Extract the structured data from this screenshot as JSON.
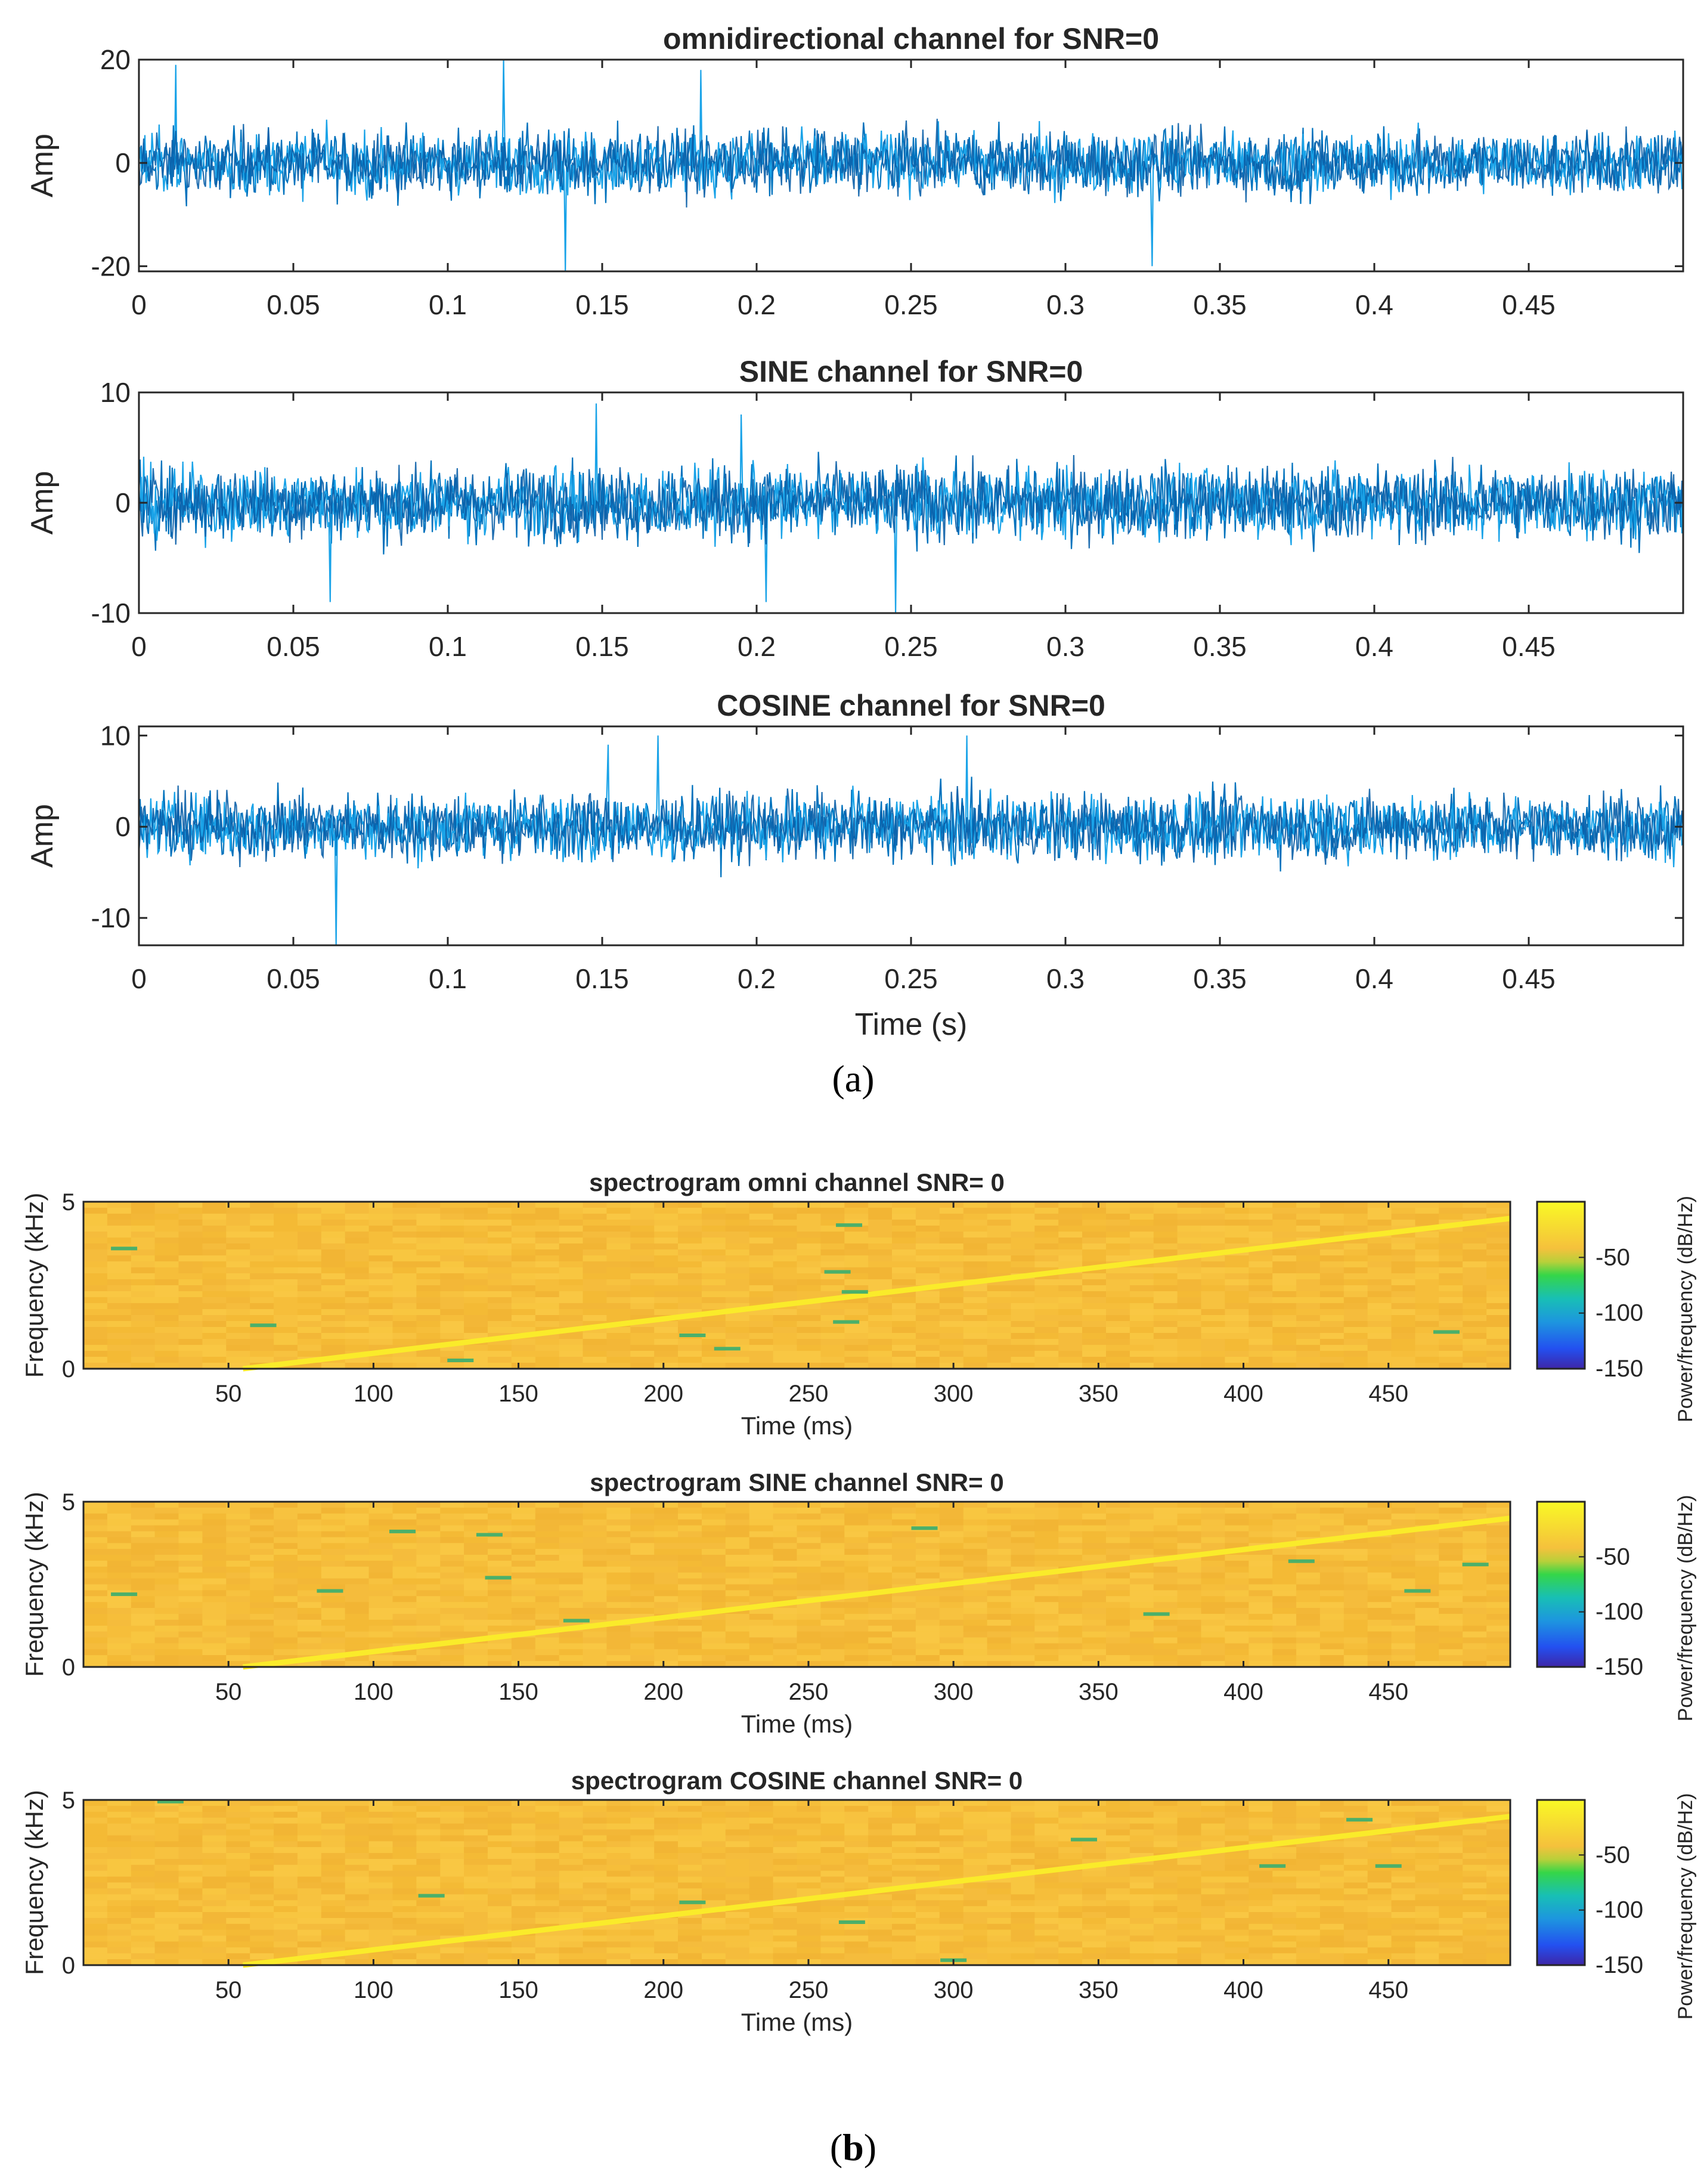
{
  "panels": {
    "a": {
      "open": "(",
      "letter": "a",
      "close": ")"
    },
    "b": {
      "open": "(",
      "letter": "b",
      "close": ")"
    }
  },
  "chart_data": [
    {
      "type": "line",
      "title": "omnidirectional channel for SNR=0",
      "xlabel": "",
      "ylabel": "Amp",
      "xlim": [
        0,
        0.5
      ],
      "ylim": [
        -21,
        20
      ],
      "xticks": [
        0,
        0.05,
        0.1,
        0.15,
        0.2,
        0.25,
        0.3,
        0.35,
        0.4,
        0.45
      ],
      "yticks": [
        -20,
        0,
        20
      ],
      "noise_std": 4.5,
      "samples": 1300,
      "spikes": [
        [
          0.012,
          19
        ],
        [
          0.138,
          -21
        ],
        [
          0.118,
          20
        ],
        [
          0.328,
          -20
        ],
        [
          0.182,
          18
        ]
      ],
      "colors": [
        "#0072BD",
        "#1AA3E8",
        "#0A5FA8"
      ]
    },
    {
      "type": "line",
      "title": "SINE channel for SNR=0",
      "xlabel": "",
      "ylabel": "Amp",
      "xlim": [
        0,
        0.5
      ],
      "ylim": [
        -10,
        10
      ],
      "xticks": [
        0,
        0.05,
        0.1,
        0.15,
        0.2,
        0.25,
        0.3,
        0.35,
        0.4,
        0.45
      ],
      "yticks": [
        -10,
        0,
        10
      ],
      "noise_std": 2.4,
      "samples": 1300,
      "spikes": [
        [
          0.148,
          9
        ],
        [
          0.062,
          -9
        ],
        [
          0.245,
          -10
        ],
        [
          0.203,
          -9
        ],
        [
          0.195,
          8
        ]
      ],
      "colors": [
        "#0072BD",
        "#1AA3E8",
        "#0A5FA8"
      ]
    },
    {
      "type": "line",
      "title": "COSINE channel for SNR=0",
      "xlabel": "Time (s)",
      "ylabel": "Amp",
      "xlim": [
        0,
        0.5
      ],
      "ylim": [
        -13,
        11
      ],
      "xticks": [
        0,
        0.05,
        0.1,
        0.15,
        0.2,
        0.25,
        0.3,
        0.35,
        0.4,
        0.45
      ],
      "yticks": [
        -10,
        0,
        10
      ],
      "noise_std": 2.6,
      "samples": 1300,
      "spikes": [
        [
          0.064,
          -13
        ],
        [
          0.168,
          10
        ],
        [
          0.268,
          10
        ],
        [
          0.152,
          9
        ]
      ],
      "colors": [
        "#0072BD",
        "#1AA3E8",
        "#0A5FA8"
      ]
    },
    {
      "type": "heatmap",
      "title": "spectrogram omni channel SNR= 0",
      "xlabel": "Time (ms)",
      "ylabel": "Frequency (kHz)",
      "xlim": [
        0,
        492
      ],
      "ylim": [
        0,
        5
      ],
      "xticks": [
        50,
        100,
        150,
        200,
        250,
        300,
        350,
        400,
        450
      ],
      "yticks": [
        0,
        5
      ],
      "colorbar": {
        "label": "Power/frequency (dB/Hz)",
        "ticks": [
          -50,
          -100,
          -150
        ],
        "range": [
          -150,
          0
        ]
      },
      "chirp": {
        "t_start": 55,
        "f_start": 0,
        "t_end": 492,
        "f_end": 4.5
      },
      "specks": [
        [
          14,
          3.6
        ],
        [
          62,
          1.3
        ],
        [
          130,
          0.25
        ],
        [
          210,
          1.0
        ],
        [
          222,
          0.6
        ],
        [
          260,
          2.9
        ],
        [
          263,
          1.4
        ],
        [
          264,
          4.3
        ],
        [
          266,
          2.3
        ],
        [
          470,
          1.1
        ]
      ]
    },
    {
      "type": "heatmap",
      "title": "spectrogram SINE channel SNR= 0",
      "xlabel": "Time (ms)",
      "ylabel": "Frequency (kHz)",
      "xlim": [
        0,
        492
      ],
      "ylim": [
        0,
        5
      ],
      "xticks": [
        50,
        100,
        150,
        200,
        250,
        300,
        350,
        400,
        450
      ],
      "yticks": [
        0,
        5
      ],
      "colorbar": {
        "label": "Power/frequency (dB/Hz)",
        "ticks": [
          -50,
          -100,
          -150
        ],
        "range": [
          -150,
          0
        ]
      },
      "chirp": {
        "t_start": 55,
        "f_start": 0,
        "t_end": 492,
        "f_end": 4.5
      },
      "specks": [
        [
          14,
          2.2
        ],
        [
          85,
          2.3
        ],
        [
          110,
          4.1
        ],
        [
          140,
          4.0
        ],
        [
          143,
          2.7
        ],
        [
          170,
          1.4
        ],
        [
          290,
          4.2
        ],
        [
          370,
          1.6
        ],
        [
          420,
          3.2
        ],
        [
          460,
          2.3
        ],
        [
          480,
          3.1
        ]
      ]
    },
    {
      "type": "heatmap",
      "title": "spectrogram COSINE channel SNR= 0",
      "xlabel": "Time (ms)",
      "ylabel": "Frequency (kHz)",
      "xlim": [
        0,
        492
      ],
      "ylim": [
        0,
        5
      ],
      "xticks": [
        50,
        100,
        150,
        200,
        250,
        300,
        350,
        400,
        450
      ],
      "yticks": [
        0,
        5
      ],
      "colorbar": {
        "label": "Power/frequency (dB/Hz)",
        "ticks": [
          -50,
          -100,
          -150
        ],
        "range": [
          -150,
          0
        ]
      },
      "chirp": {
        "t_start": 55,
        "f_start": 0,
        "t_end": 492,
        "f_end": 4.5
      },
      "specks": [
        [
          30,
          4.95
        ],
        [
          120,
          2.1
        ],
        [
          210,
          1.9
        ],
        [
          265,
          1.3
        ],
        [
          300,
          0.15
        ],
        [
          345,
          3.8
        ],
        [
          410,
          3.0
        ],
        [
          440,
          4.4
        ],
        [
          450,
          3.0
        ]
      ]
    }
  ]
}
